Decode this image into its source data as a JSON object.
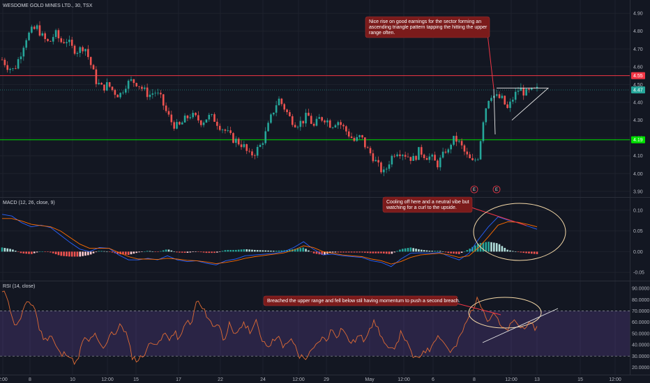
{
  "chart_data": {
    "type": "candlestick",
    "title": "WESDOME GOLD MINES LTD., 30, TSX",
    "x_ticks": [
      "2:00",
      "8",
      "10",
      "12:00",
      "15",
      "17",
      "22",
      "24",
      "12:00",
      "29",
      "May",
      "12:00",
      "6",
      "8",
      "12:00",
      "13",
      "15",
      "12:00"
    ],
    "price_pane": {
      "y_ticks": [
        "4.90",
        "4.80",
        "4.70",
        "4.60",
        "4.50",
        "4.40",
        "4.30",
        "4.20",
        "4.10",
        "4.00",
        "3.90"
      ],
      "ylim": [
        3.88,
        4.92
      ],
      "horizontal_levels": [
        {
          "value": 4.55,
          "label": "4.55",
          "color": "#f23645"
        },
        {
          "value": 4.19,
          "label": "4.19",
          "color": "#00e000"
        }
      ],
      "last_price": {
        "value": 4.47,
        "label": "4.47"
      },
      "close_path": [
        4.64,
        4.6,
        4.58,
        4.66,
        4.76,
        4.8,
        4.82,
        4.76,
        4.73,
        4.79,
        4.74,
        4.75,
        4.7,
        4.69,
        4.72,
        4.62,
        4.52,
        4.48,
        4.5,
        4.46,
        4.44,
        4.5,
        4.52,
        4.51,
        4.47,
        4.44,
        4.46,
        4.42,
        4.34,
        4.28,
        4.26,
        4.3,
        4.33,
        4.31,
        4.29,
        4.32,
        4.31,
        4.27,
        4.24,
        4.2,
        4.18,
        4.16,
        4.1,
        4.12,
        4.16,
        4.24,
        4.34,
        4.42,
        4.37,
        4.31,
        4.28,
        4.29,
        4.33,
        4.26,
        4.31,
        4.31,
        4.27,
        4.3,
        4.26,
        4.22,
        4.18,
        4.21,
        4.14,
        4.1,
        4.04,
        4.0,
        4.08,
        4.13,
        4.12,
        4.1,
        4.08,
        4.13,
        4.1,
        4.09,
        4.05,
        4.1,
        4.14,
        4.2,
        4.16,
        4.1,
        4.06,
        4.1,
        4.34,
        4.45,
        4.43,
        4.42,
        4.36,
        4.43,
        4.48,
        4.45,
        4.46,
        4.47
      ],
      "events": [
        {
          "label": "E"
        },
        {
          "label": "E"
        }
      ]
    },
    "macd_pane": {
      "title": "MACD (12, 26, close, 9)",
      "y_ticks": [
        "0.10",
        "0.05",
        "0.00",
        "-0.05"
      ],
      "ylim": [
        -0.065,
        0.125
      ],
      "macd_line": [
        0.09,
        0.086,
        0.07,
        0.06,
        0.064,
        0.058,
        0.04,
        0.022,
        0.006,
        0.0,
        0.01,
        0.008,
        -0.008,
        -0.02,
        -0.02,
        -0.016,
        -0.02,
        -0.01,
        -0.02,
        -0.024,
        -0.022,
        -0.028,
        -0.032,
        -0.022,
        -0.018,
        -0.01,
        -0.008,
        -0.006,
        -0.004,
        0.0,
        0.01,
        0.024,
        0.006,
        -0.008,
        -0.006,
        -0.01,
        -0.012,
        -0.014,
        -0.022,
        -0.026,
        -0.036,
        -0.018,
        -0.004,
        -0.003,
        -0.004,
        -0.002,
        -0.012,
        -0.02,
        -0.004,
        0.03,
        0.06,
        0.084,
        0.076,
        0.07,
        0.062,
        0.054
      ],
      "signal_line": [
        0.08,
        0.08,
        0.074,
        0.066,
        0.063,
        0.06,
        0.05,
        0.034,
        0.018,
        0.008,
        0.008,
        0.008,
        -0.002,
        -0.012,
        -0.018,
        -0.018,
        -0.019,
        -0.016,
        -0.018,
        -0.021,
        -0.022,
        -0.025,
        -0.029,
        -0.026,
        -0.022,
        -0.016,
        -0.012,
        -0.009,
        -0.006,
        -0.003,
        0.004,
        0.014,
        0.01,
        0.0,
        -0.004,
        -0.008,
        -0.01,
        -0.012,
        -0.018,
        -0.022,
        -0.03,
        -0.024,
        -0.014,
        -0.008,
        -0.006,
        -0.004,
        -0.008,
        -0.014,
        -0.01,
        0.01,
        0.036,
        0.064,
        0.072,
        0.071,
        0.066,
        0.06
      ],
      "histogram": [
        0.01,
        0.006,
        -0.004,
        -0.006,
        0.001,
        -0.002,
        -0.01,
        -0.012,
        -0.012,
        -0.008,
        0.002,
        0.0,
        -0.006,
        -0.008,
        -0.002,
        0.002,
        -0.001,
        0.006,
        -0.002,
        -0.003,
        0.0,
        -0.003,
        -0.003,
        0.004,
        0.004,
        0.006,
        0.004,
        0.003,
        0.002,
        0.003,
        0.006,
        0.01,
        -0.004,
        -0.008,
        -0.002,
        -0.002,
        -0.002,
        -0.002,
        -0.004,
        -0.004,
        -0.006,
        0.006,
        0.01,
        0.005,
        0.002,
        0.002,
        -0.004,
        -0.006,
        0.006,
        0.02,
        0.024,
        0.02,
        0.004,
        -0.001,
        -0.004,
        -0.006
      ]
    },
    "rsi_pane": {
      "title": "RSI (14, close)",
      "y_ticks": [
        "90.0000",
        "80.0000",
        "70.0000",
        "60.0000",
        "50.0000",
        "40.0000",
        "30.0000",
        "20.0000"
      ],
      "ylim": [
        16,
        95
      ],
      "upper_band": 70,
      "lower_band": 30,
      "rsi": [
        86,
        84,
        60,
        58,
        72,
        78,
        74,
        52,
        44,
        50,
        38,
        30,
        34,
        26,
        24,
        46,
        42,
        50,
        40,
        36,
        52,
        50,
        58,
        50,
        30,
        26,
        30,
        38,
        44,
        40,
        50,
        46,
        50,
        44,
        62,
        56,
        80,
        72,
        66,
        56,
        60,
        44,
        58,
        46,
        56,
        58,
        52,
        60,
        46,
        40,
        42,
        50,
        36,
        44,
        42,
        30,
        28,
        32,
        38,
        46,
        44,
        54,
        48,
        56,
        44,
        42,
        48,
        44,
        56,
        60,
        50,
        38,
        34,
        42,
        52,
        40,
        30,
        26,
        36,
        34,
        46,
        48,
        40,
        34,
        38,
        50,
        60,
        72,
        80,
        74,
        60,
        70,
        58,
        52,
        56,
        62,
        54,
        58,
        56,
        55
      ]
    },
    "annotations": {
      "price_note": [
        "Nice rise on good earnings for the sector forming an",
        "ascending triangle pattern tapping the hitting the upper",
        "range often."
      ],
      "macd_note": [
        "Cooling off here and a neutral vibe but",
        "watching for a curl to the upside."
      ],
      "rsi_note": [
        "Breached the upper range and fell below stil having momentum to push a second breach."
      ]
    }
  },
  "colors": {
    "background": "#131722",
    "up": "#26a69a",
    "down": "#ef5350",
    "macd": "#2962ff",
    "signal": "#ff6d00",
    "rsi": "#e06b34",
    "rsi_band": "#7e57c2",
    "annotation": "#7b1b1b",
    "ellipse": "#f5d9a8"
  }
}
